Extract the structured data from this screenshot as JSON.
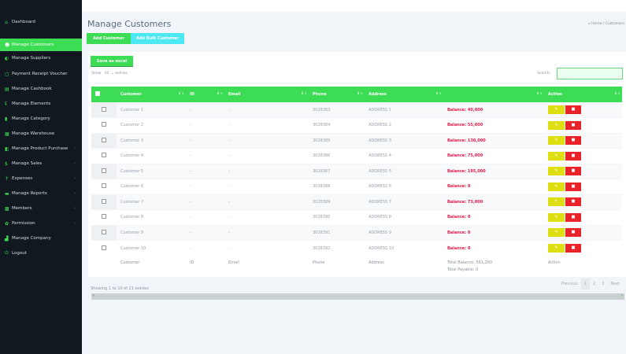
{
  "sidebar": {
    "items": [
      {
        "label": "Dashboard",
        "icon": "dashboard-icon",
        "glyph": "⌂"
      },
      {
        "label": "Manage Customers",
        "icon": "users-icon",
        "glyph": "☻",
        "active": true
      },
      {
        "label": "Manage Suppliers",
        "icon": "truck-icon",
        "glyph": "◐"
      },
      {
        "label": "Payment Receipt Voucher",
        "icon": "receipt-icon",
        "glyph": "▢"
      },
      {
        "label": "Manage Cashbook",
        "icon": "book-icon",
        "glyph": "▤"
      },
      {
        "label": "Manage Elements",
        "icon": "elements-icon",
        "glyph": "ʢ"
      },
      {
        "label": "Manage Category",
        "icon": "category-icon",
        "glyph": "▮"
      },
      {
        "label": "Manage Warehouse",
        "icon": "warehouse-icon",
        "glyph": "▦"
      },
      {
        "label": "Manage Product Purchase",
        "icon": "purchase-icon",
        "glyph": "◧",
        "chev": "‹"
      },
      {
        "label": "Manage Sales",
        "icon": "dollar-icon",
        "glyph": "$",
        "chev": "‹"
      },
      {
        "label": "Expenses",
        "icon": "arrow-up-icon",
        "glyph": "↑",
        "chev": "‹"
      },
      {
        "label": "Manage Reports",
        "icon": "reports-icon",
        "glyph": "▬",
        "chev": "‹"
      },
      {
        "label": "Members",
        "icon": "members-icon",
        "glyph": "▩",
        "chev": "‹"
      },
      {
        "label": "Permission",
        "icon": "gear-icon",
        "glyph": "✿",
        "chev": "‹"
      },
      {
        "label": "Manage Company",
        "icon": "company-icon",
        "glyph": "▟"
      },
      {
        "label": "Logout",
        "icon": "power-icon",
        "glyph": "⏻"
      }
    ]
  },
  "header": {
    "title": "Manage Customers",
    "breadcrumb_home": "Home",
    "breadcrumb_current": "Customers",
    "add_label": "Add Customer",
    "bulk_label": "Add Bulk Customer"
  },
  "colors": {
    "accent": "#3ddc55",
    "cyan": "#4de9f2",
    "danger": "#e8232a",
    "warning": "#dede10"
  },
  "table": {
    "save_label": "Save as excel",
    "show_label": "Show",
    "show_value": "10",
    "entries_label": "entries",
    "search_label": "Search:",
    "search_value": "",
    "headers": [
      "Customer",
      "ID",
      "Email",
      "Phone",
      "Address",
      "",
      "Action"
    ],
    "rows": [
      {
        "customer": "Customer 1",
        "id": "-",
        "email": "-",
        "phone": "3028383",
        "address": "ADDRESS 1",
        "balance": "Balance: 40,000"
      },
      {
        "customer": "Customer 2",
        "id": "-",
        "email": "-",
        "phone": "3028384",
        "address": "ADDRESS 2",
        "balance": "Balance: 55,000"
      },
      {
        "customer": "Customer 3",
        "id": "-",
        "email": "-",
        "phone": "3028385",
        "address": "ADDRESS 3",
        "balance": "Balance: 130,000"
      },
      {
        "customer": "Customer 4",
        "id": "-",
        "email": "-",
        "phone": "3028386",
        "address": "ADDRESS 4",
        "balance": "Balance: 75,000"
      },
      {
        "customer": "Customer 5",
        "id": "-",
        "email": "-",
        "phone": "3028387",
        "address": "ADDRESS 5",
        "balance": "Balance: 195,000"
      },
      {
        "customer": "Customer 6",
        "id": "-",
        "email": "-",
        "phone": "3028388",
        "address": "ADDRESS 6",
        "balance": "Balance: 0"
      },
      {
        "customer": "Customer 7",
        "id": "-",
        "email": "-",
        "phone": "3028389",
        "address": "ADDRESS 7",
        "balance": "Balance: 73,000"
      },
      {
        "customer": "Customer 8",
        "id": "-",
        "email": "-",
        "phone": "3028390",
        "address": "ADDRESS 8",
        "balance": "Balance: 0"
      },
      {
        "customer": "Customer 9",
        "id": "-",
        "email": "-",
        "phone": "3028391",
        "address": "ADDRESS 9",
        "balance": "Balance: 0"
      },
      {
        "customer": "Customer 10",
        "id": "-",
        "email": "-",
        "phone": "3028392",
        "address": "ADDRESS 10",
        "balance": "Balance: 0"
      }
    ],
    "footer": {
      "customer": "Customer",
      "id": "ID",
      "email": "Email",
      "phone": "Phone",
      "address": "Address",
      "total_balance": "Total Balance: 561,200",
      "total_payable": "Total Payable: 0",
      "action": "Action"
    },
    "info": "Showing 1 to 10 of 21 entries",
    "pager": [
      "Previous",
      "1",
      "2",
      "3",
      "Next"
    ]
  }
}
